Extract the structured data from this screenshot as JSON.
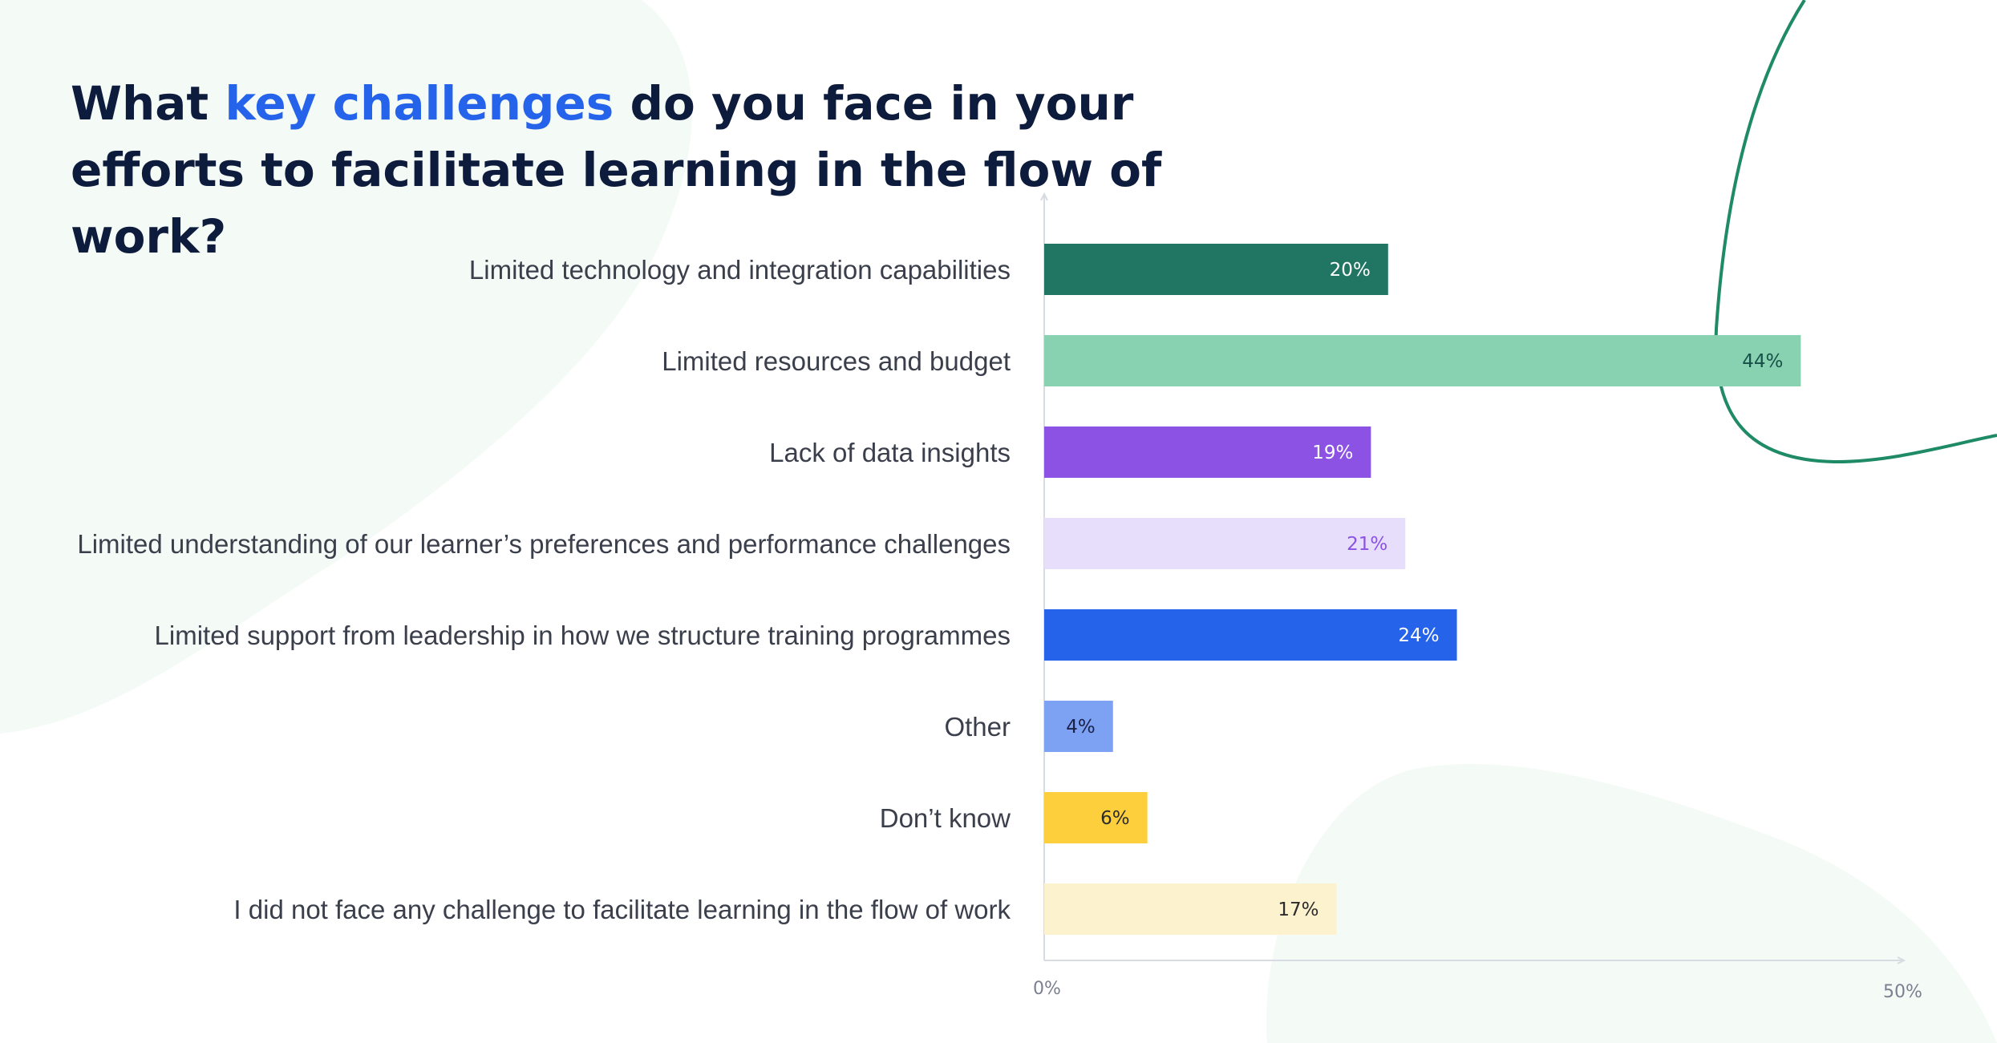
{
  "title": {
    "part1": "What ",
    "highlight": "key challenges",
    "part2": " do you face in your efforts to facilitate learning in the flow of work?"
  },
  "colors": {
    "title": "#0d1b3d",
    "highlight": "#2563eb",
    "axis": "#d7dbe2",
    "blob": "#f4faf6",
    "curve": "#1f8a66"
  },
  "chart_data": {
    "type": "bar",
    "orientation": "horizontal",
    "categories": [
      "Limited technology and integration capabilities",
      "Limited resources and budget",
      "Lack of data insights",
      "Limited understanding of our learner’s preferences and performance challenges",
      "Limited support from leadership in how we structure training programmes",
      "Other",
      "Don’t know",
      "I did not face any challenge to facilitate learning in the flow of work"
    ],
    "values": [
      20,
      44,
      19,
      21,
      24,
      4,
      6,
      17
    ],
    "value_labels": [
      "20%",
      "44%",
      "19%",
      "21%",
      "24%",
      "4%",
      "6%",
      "17%"
    ],
    "bar_colors": [
      "#217563",
      "#88d2b1",
      "#8b52e3",
      "#e6defa",
      "#2563ea",
      "#7ea2f3",
      "#fdcf3d",
      "#fcf2cd"
    ],
    "label_colors": [
      "#ffffff",
      "#17504a",
      "#ffffff",
      "#8b52e3",
      "#ffffff",
      "#1a2147",
      "#2b2b2b",
      "#2b2b2b"
    ],
    "xlim": [
      0,
      50
    ],
    "ticks": [
      "0%",
      "50%"
    ],
    "grid": false,
    "xlabel": "",
    "ylabel": ""
  }
}
